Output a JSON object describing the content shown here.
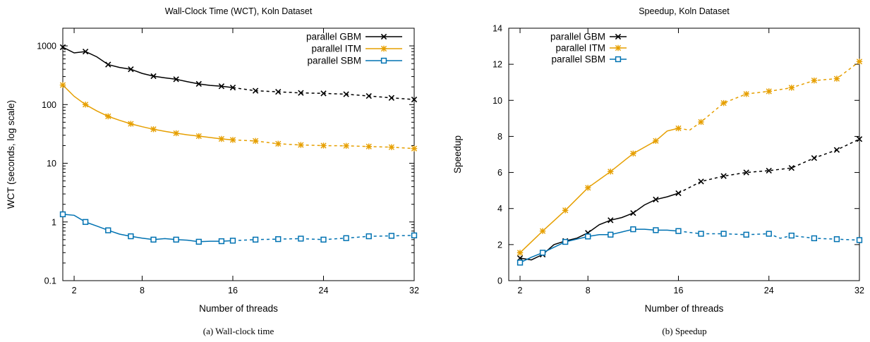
{
  "chart_data": [
    {
      "type": "line",
      "title": "Wall-Clock Time (WCT), Koln Dataset",
      "xlabel": "Number of threads",
      "ylabel": "WCT (seconds, log scale)",
      "yscale": "log",
      "xlim": [
        1,
        32
      ],
      "ylim": [
        0.1,
        2000
      ],
      "xticks": [
        2,
        8,
        16,
        24,
        32
      ],
      "yticks": [
        0.1,
        1,
        10,
        100,
        1000
      ],
      "ytick_labels": [
        "0.1",
        "1",
        "10",
        "100",
        "1000"
      ],
      "legend_position": "top-right",
      "solid_until_x": 16,
      "caption": "(a)  Wall-clock time",
      "series": [
        {
          "name": "parallel GBM",
          "color": "#000000",
          "marker": "x",
          "x": [
            1,
            2,
            3,
            4,
            5,
            6,
            7,
            8,
            9,
            10,
            11,
            12,
            13,
            14,
            15,
            16,
            18,
            20,
            22,
            24,
            26,
            28,
            30,
            32
          ],
          "y": [
            950,
            760,
            800,
            650,
            480,
            430,
            400,
            340,
            305,
            285,
            270,
            245,
            225,
            212,
            205,
            195,
            172,
            165,
            158,
            155,
            150,
            140,
            130,
            122
          ],
          "marked_x": [
            1,
            3,
            5,
            7,
            9,
            11,
            13,
            15,
            16,
            18,
            20,
            22,
            24,
            26,
            28,
            30,
            32
          ]
        },
        {
          "name": "parallel ITM",
          "color": "#E69F00",
          "marker": "asterisk",
          "x": [
            1,
            2,
            3,
            4,
            5,
            6,
            7,
            8,
            9,
            10,
            11,
            12,
            13,
            14,
            15,
            16,
            18,
            20,
            22,
            24,
            26,
            28,
            30,
            32
          ],
          "y": [
            215,
            138,
            100,
            78,
            63,
            54,
            47,
            42,
            38,
            35,
            32.5,
            30.5,
            29,
            27.5,
            26,
            25,
            24,
            21.5,
            20.5,
            20,
            19.8,
            19.3,
            18.8,
            17.8
          ],
          "marked_x": [
            1,
            3,
            5,
            7,
            9,
            11,
            13,
            15,
            16,
            18,
            20,
            22,
            24,
            26,
            28,
            30,
            32
          ]
        },
        {
          "name": "parallel SBM",
          "color": "#0072B2",
          "marker": "square",
          "x": [
            1,
            2,
            3,
            4,
            5,
            6,
            7,
            8,
            9,
            10,
            11,
            12,
            13,
            14,
            15,
            16,
            18,
            20,
            22,
            24,
            26,
            28,
            30,
            32
          ],
          "y": [
            1.35,
            1.3,
            1.0,
            0.85,
            0.72,
            0.62,
            0.57,
            0.53,
            0.5,
            0.52,
            0.5,
            0.49,
            0.46,
            0.47,
            0.47,
            0.48,
            0.5,
            0.51,
            0.52,
            0.5,
            0.53,
            0.57,
            0.58,
            0.59
          ],
          "marked_x": [
            1,
            3,
            5,
            7,
            9,
            11,
            13,
            15,
            16,
            18,
            20,
            22,
            24,
            26,
            28,
            30,
            32
          ]
        }
      ]
    },
    {
      "type": "line",
      "title": "Speedup, Koln Dataset",
      "xlabel": "Number of threads",
      "ylabel": "Speedup",
      "xlim": [
        1,
        32
      ],
      "ylim": [
        0,
        14
      ],
      "xticks": [
        2,
        8,
        16,
        24,
        32
      ],
      "yticks": [
        0,
        2,
        4,
        6,
        8,
        10,
        12,
        14
      ],
      "legend_position": "top-left",
      "solid_until_x": 16,
      "caption": "(b)  Speedup",
      "series": [
        {
          "name": "parallel GBM",
          "color": "#000000",
          "marker": "x",
          "x": [
            2,
            3,
            4,
            5,
            6,
            7,
            8,
            9,
            10,
            11,
            12,
            13,
            14,
            15,
            16,
            18,
            20,
            22,
            24,
            26,
            28,
            30,
            32
          ],
          "y": [
            1.25,
            1.15,
            1.45,
            2.0,
            2.2,
            2.35,
            2.65,
            3.1,
            3.35,
            3.5,
            3.75,
            4.2,
            4.5,
            4.65,
            4.85,
            5.5,
            5.8,
            6.0,
            6.1,
            6.25,
            6.8,
            7.25,
            7.85
          ],
          "marked_x": [
            2,
            4,
            6,
            8,
            10,
            12,
            14,
            16,
            18,
            20,
            22,
            24,
            26,
            28,
            30,
            32
          ]
        },
        {
          "name": "parallel ITM",
          "color": "#E69F00",
          "marker": "asterisk",
          "x": [
            2,
            4,
            6,
            8,
            10,
            12,
            14,
            15,
            16,
            17,
            18,
            20,
            22,
            24,
            26,
            28,
            30,
            32
          ],
          "y": [
            1.55,
            2.75,
            3.9,
            5.15,
            6.05,
            7.05,
            7.75,
            8.3,
            8.45,
            8.35,
            8.8,
            9.85,
            10.35,
            10.5,
            10.7,
            11.1,
            11.2,
            12.15
          ],
          "marked_x": [
            2,
            4,
            6,
            8,
            10,
            12,
            14,
            16,
            18,
            20,
            22,
            24,
            26,
            28,
            30,
            32
          ]
        },
        {
          "name": "parallel SBM",
          "color": "#0072B2",
          "marker": "square",
          "x": [
            2,
            3,
            4,
            5,
            6,
            7,
            8,
            9,
            10,
            11,
            12,
            13,
            14,
            15,
            16,
            18,
            20,
            22,
            24,
            25,
            26,
            28,
            30,
            32
          ],
          "y": [
            1.0,
            1.3,
            1.55,
            1.85,
            2.15,
            2.3,
            2.45,
            2.55,
            2.55,
            2.7,
            2.85,
            2.85,
            2.8,
            2.8,
            2.75,
            2.6,
            2.6,
            2.55,
            2.6,
            2.35,
            2.5,
            2.35,
            2.3,
            2.25
          ],
          "marked_x": [
            2,
            4,
            6,
            8,
            10,
            12,
            14,
            16,
            18,
            20,
            22,
            24,
            26,
            28,
            30,
            32
          ]
        }
      ]
    }
  ]
}
